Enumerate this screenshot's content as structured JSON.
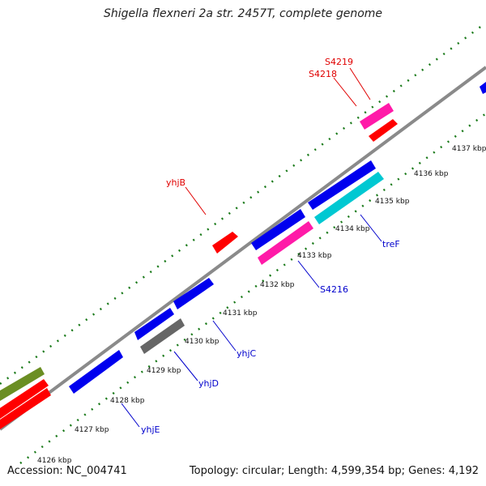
{
  "title": "Shigella flexneri 2a str. 2457T, complete genome",
  "footer": {
    "accession": "Accession: NC_004741",
    "topology": "Topology: circular; Length: 4,599,354 bp; Genes: 4,192"
  },
  "colors": {
    "backbone": "#888888",
    "dotted_track": "#1a7a1a",
    "label_red": "#e00000",
    "label_blue": "#0000cc",
    "blue": "#0000ee",
    "red": "#ff0000",
    "magenta": "#ff1aa8",
    "cyan": "#00c8d2",
    "gray": "#666666",
    "olive": "#6b8e23"
  },
  "ticks": [
    "4126 kbp",
    "4127 kbp",
    "4128 kbp",
    "4129 kbp",
    "4130 kbp",
    "4131 kbp",
    "4132 kbp",
    "4133 kbp",
    "4134 kbp",
    "4135 kbp",
    "4136 kbp",
    "4137 kbp"
  ],
  "gene_labels": [
    {
      "text": "yhjB",
      "color": "red"
    },
    {
      "text": "S4218",
      "color": "red"
    },
    {
      "text": "S4219",
      "color": "red"
    },
    {
      "text": "yhjE",
      "color": "blue"
    },
    {
      "text": "yhjD",
      "color": "blue"
    },
    {
      "text": "yhjC",
      "color": "blue"
    },
    {
      "text": "S4216",
      "color": "blue"
    },
    {
      "text": "treF",
      "color": "blue"
    }
  ]
}
